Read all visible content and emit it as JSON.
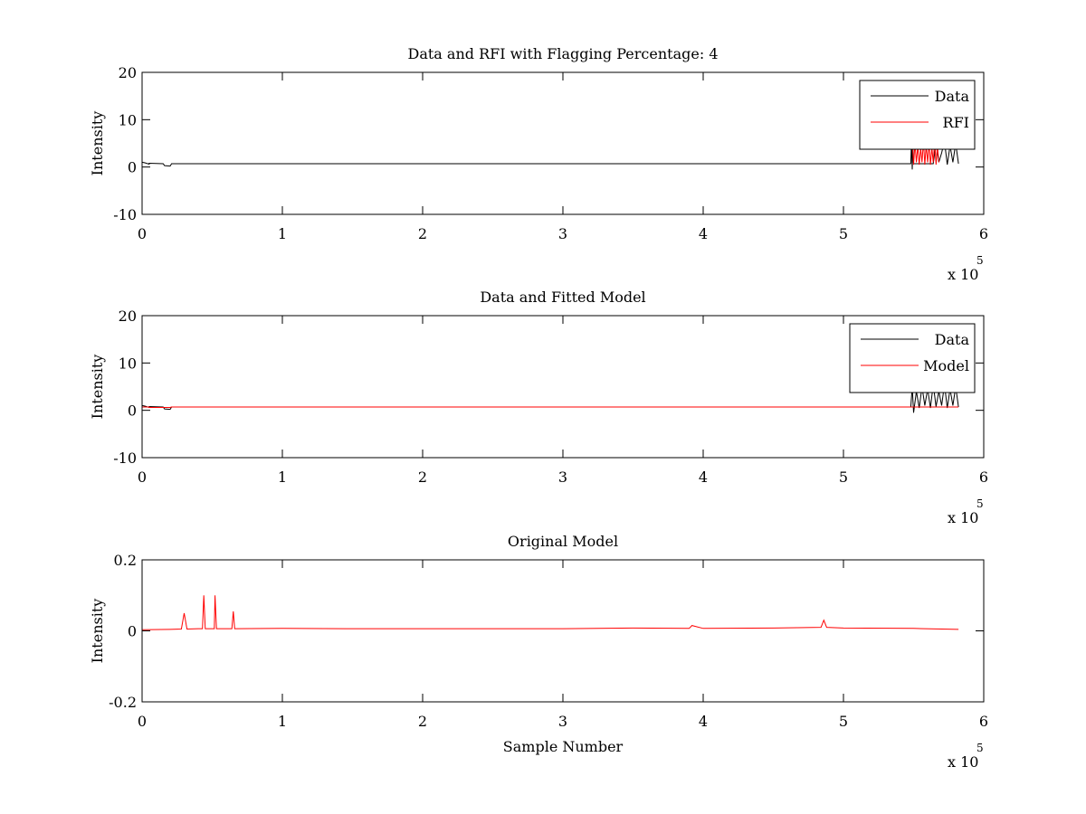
{
  "chart_data": [
    {
      "type": "line",
      "title": "Data and RFI with Flagging Percentage: 4",
      "xlabel": "",
      "ylabel": "Intensity",
      "xlim": [
        0,
        600000
      ],
      "ylim": [
        -10,
        20
      ],
      "x_ticks": [
        0,
        1,
        2,
        3,
        4,
        5,
        6
      ],
      "y_ticks": [
        -10,
        0,
        10,
        20
      ],
      "x_multiplier": "x 10",
      "x_multiplier_exponent": "5",
      "legend_position": "top-right",
      "series": [
        {
          "name": "Data",
          "color": "#000000",
          "x": [
            0,
            2000,
            5000,
            5001,
            15000,
            16000,
            20000,
            21000,
            100000,
            300000,
            500000,
            548000,
            548500,
            549000,
            549500,
            550000,
            552000,
            554000,
            556000,
            558000,
            560000,
            562000,
            564000,
            566000,
            568000,
            570000,
            572000,
            574000,
            576000,
            578000,
            580000,
            582000
          ],
          "y": [
            1.0,
            0.9,
            0.6,
            0.8,
            0.7,
            0.3,
            0.2,
            0.7,
            0.7,
            0.7,
            0.7,
            0.7,
            5.5,
            -0.5,
            4.0,
            0.7,
            0.7,
            0.7,
            0.7,
            0.7,
            0.7,
            0.7,
            0.7,
            5.0,
            1.0,
            3.0,
            5.5,
            0.5,
            4.5,
            1.0,
            5.0,
            0.7
          ]
        },
        {
          "name": "RFI",
          "color": "#ff0000",
          "x": [
            549000,
            550000,
            551000,
            552000,
            553000,
            554000,
            555000,
            556000,
            557000,
            558000,
            559000,
            560000,
            561000,
            562000,
            563000,
            564000,
            565000,
            566000,
            567000,
            568000
          ],
          "y": [
            5.5,
            0.5,
            5.0,
            1.0,
            4.5,
            0.5,
            4.0,
            1.0,
            5.5,
            0.5,
            4.5,
            1.0,
            5.0,
            0.5,
            4.0,
            1.0,
            5.5,
            0.5,
            4.5,
            1.0
          ]
        }
      ]
    },
    {
      "type": "line",
      "title": "Data and Fitted Model",
      "xlabel": "",
      "ylabel": "Intensity",
      "xlim": [
        0,
        600000
      ],
      "ylim": [
        -10,
        20
      ],
      "x_ticks": [
        0,
        1,
        2,
        3,
        4,
        5,
        6
      ],
      "y_ticks": [
        -10,
        0,
        10,
        20
      ],
      "x_multiplier": "x 10",
      "x_multiplier_exponent": "5",
      "legend_position": "top-right",
      "series": [
        {
          "name": "Data",
          "color": "#000000",
          "x": [
            0,
            2000,
            5000,
            5001,
            15000,
            16000,
            20000,
            21000,
            100000,
            300000,
            500000,
            548000,
            549000,
            550000,
            552000,
            554000,
            556000,
            558000,
            560000,
            562000,
            564000,
            566000,
            568000,
            570000,
            572000,
            574000,
            576000,
            578000,
            580000,
            582000
          ],
          "y": [
            1.0,
            0.9,
            0.6,
            0.8,
            0.7,
            0.3,
            0.2,
            0.7,
            0.7,
            0.7,
            0.7,
            0.7,
            5.0,
            -0.5,
            4.0,
            0.5,
            5.0,
            1.0,
            4.5,
            0.5,
            5.5,
            0.8,
            4.0,
            1.0,
            5.5,
            0.5,
            4.5,
            1.0,
            5.0,
            0.7
          ]
        },
        {
          "name": "Model",
          "color": "#ff0000",
          "x": [
            0,
            5000,
            5001,
            20000,
            21000,
            582000
          ],
          "y": [
            0.7,
            0.7,
            0.6,
            0.6,
            0.7,
            0.7
          ]
        }
      ]
    },
    {
      "type": "line",
      "title": "Original Model",
      "xlabel": "Sample Number",
      "ylabel": "Intensity",
      "xlim": [
        0,
        600000
      ],
      "ylim": [
        -0.2,
        0.2
      ],
      "x_ticks": [
        0,
        1,
        2,
        3,
        4,
        5,
        6
      ],
      "y_ticks": [
        -0.2,
        0,
        0.2
      ],
      "x_multiplier": "x 10",
      "x_multiplier_exponent": "5",
      "legend_position": "none",
      "series": [
        {
          "color": "#ff0000",
          "x": [
            0,
            20000,
            28000,
            30000,
            32000,
            40000,
            43000,
            44000,
            45000,
            50000,
            51500,
            52000,
            53000,
            60000,
            64000,
            65000,
            66000,
            100000,
            150000,
            200000,
            300000,
            350000,
            390000,
            392000,
            400000,
            450000,
            484000,
            486000,
            488000,
            500000,
            550000,
            582000
          ],
          "y": [
            0.003,
            0.004,
            0.005,
            0.05,
            0.005,
            0.006,
            0.006,
            0.1,
            0.006,
            0.006,
            0.006,
            0.1,
            0.006,
            0.006,
            0.006,
            0.055,
            0.006,
            0.007,
            0.006,
            0.006,
            0.006,
            0.008,
            0.007,
            0.015,
            0.007,
            0.008,
            0.01,
            0.03,
            0.01,
            0.008,
            0.007,
            0.004
          ]
        }
      ]
    }
  ]
}
